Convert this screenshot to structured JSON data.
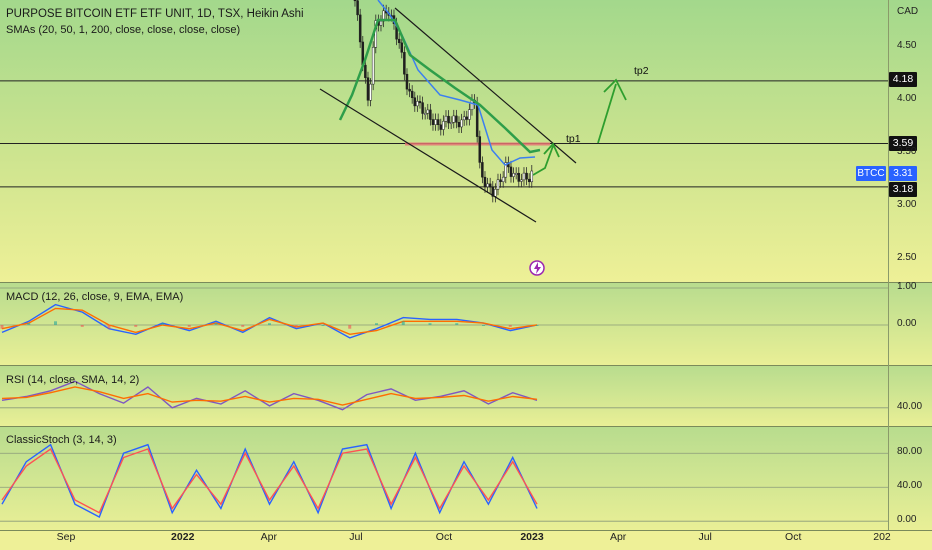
{
  "header": {
    "title": "PURPOSE BITCOIN ETF ETF UNIT, 1D, TSX, Heikin Ashi",
    "sma_label": "SMAs (20, 50, 1, 200, close, close, close, close)"
  },
  "colors": {
    "macd_line": "#2962ff",
    "signal_line": "#ff6d00",
    "rsi_line": "#7e57c2",
    "rsi_ma": "#ff6d00",
    "stoch_k": "#2962ff",
    "stoch_d": "#ff5252",
    "sma20": "#3b7ff0",
    "sma50": "#2e9e4a",
    "badge_dark": "#111111",
    "badge_blue": "#2962ff",
    "arrow": "#2e9e2e",
    "zone": "#e57373"
  },
  "chart_data": [
    {
      "type": "candlestick",
      "title": "PURPOSE BITCOIN ETF ETF UNIT, 1D, TSX, Heikin Ashi",
      "currency": "CAD",
      "ticker": "BTCC",
      "y_ticks": [
        "4.50",
        "4.00",
        "3.50",
        "3.00",
        "2.50"
      ],
      "ylim": [
        2.4,
        4.95
      ],
      "x_ticks": [
        "Sep",
        "2022",
        "Apr",
        "Jul",
        "Oct",
        "2023",
        "Apr",
        "Jul",
        "Oct",
        "202"
      ],
      "last_price": "3.31",
      "horizontal_levels": [
        "4.18",
        "3.59",
        "3.18"
      ],
      "annotations": [
        "tp1",
        "tp2"
      ],
      "approx_close_path": [
        {
          "date": "2022-06-30",
          "value": 4.95
        },
        {
          "date": "2022-07-07",
          "value": 4.45
        },
        {
          "date": "2022-07-14",
          "value": 3.95
        },
        {
          "date": "2022-07-21",
          "value": 4.7
        },
        {
          "date": "2022-08-04",
          "value": 4.85
        },
        {
          "date": "2022-08-15",
          "value": 4.55
        },
        {
          "date": "2022-08-25",
          "value": 4.05
        },
        {
          "date": "2022-09-05",
          "value": 3.95
        },
        {
          "date": "2022-09-15",
          "value": 3.85
        },
        {
          "date": "2022-09-25",
          "value": 3.75
        },
        {
          "date": "2022-10-05",
          "value": 3.82
        },
        {
          "date": "2022-10-20",
          "value": 3.78
        },
        {
          "date": "2022-11-02",
          "value": 4.0
        },
        {
          "date": "2022-11-08",
          "value": 3.3
        },
        {
          "date": "2022-11-20",
          "value": 3.12
        },
        {
          "date": "2022-11-28",
          "value": 3.22
        },
        {
          "date": "2022-12-05",
          "value": 3.38
        },
        {
          "date": "2022-12-15",
          "value": 3.27
        },
        {
          "date": "2022-12-28",
          "value": 3.26
        },
        {
          "date": "2023-01-02",
          "value": 3.31
        }
      ]
    },
    {
      "type": "line",
      "title": "MACD (12, 26, close, 9, EMA, EMA)",
      "y_ticks": [
        "1.00",
        "0.00"
      ],
      "ylim": [
        -1,
        1
      ],
      "series": [
        {
          "values": [
            -0.2,
            0.1,
            0.55,
            0.35,
            -0.1,
            -0.25,
            0.05,
            -0.15,
            0.1,
            -0.2,
            0.2,
            -0.1,
            0.05,
            -0.35,
            -0.1,
            0.2,
            0.15,
            0.15,
            0.05,
            -0.15,
            0.0
          ]
        },
        {
          "values": [
            -0.1,
            0.05,
            0.45,
            0.4,
            0.0,
            -0.2,
            0.0,
            -0.1,
            0.05,
            -0.15,
            0.15,
            -0.05,
            0.05,
            -0.25,
            -0.15,
            0.1,
            0.1,
            0.1,
            0.05,
            -0.1,
            0.0
          ]
        }
      ]
    },
    {
      "type": "line",
      "title": "RSI (14, close, SMA, 14, 2)",
      "y_ticks": [
        "40.00"
      ],
      "ylim": [
        25,
        80
      ],
      "series": [
        {
          "values": [
            48,
            52,
            58,
            68,
            55,
            45,
            62,
            40,
            50,
            44,
            58,
            42,
            55,
            48,
            38,
            54,
            60,
            48,
            52,
            58,
            44,
            56,
            48
          ]
        },
        {
          "values": [
            50,
            51,
            56,
            62,
            57,
            50,
            55,
            46,
            48,
            47,
            52,
            46,
            50,
            49,
            43,
            49,
            55,
            50,
            51,
            53,
            47,
            52,
            49
          ]
        }
      ]
    },
    {
      "type": "line",
      "title": "ClassicStoch (3, 14, 3)",
      "y_ticks": [
        "80.00",
        "40.00",
        "0.00"
      ],
      "ylim": [
        -8,
        105
      ],
      "series": [
        {
          "values": [
            20,
            70,
            90,
            20,
            5,
            80,
            90,
            10,
            60,
            15,
            85,
            20,
            70,
            10,
            85,
            90,
            15,
            80,
            10,
            70,
            20,
            75,
            15
          ]
        },
        {
          "values": [
            25,
            65,
            85,
            25,
            10,
            75,
            85,
            15,
            55,
            20,
            80,
            25,
            65,
            15,
            80,
            85,
            20,
            75,
            15,
            65,
            25,
            70,
            20
          ]
        }
      ]
    }
  ]
}
